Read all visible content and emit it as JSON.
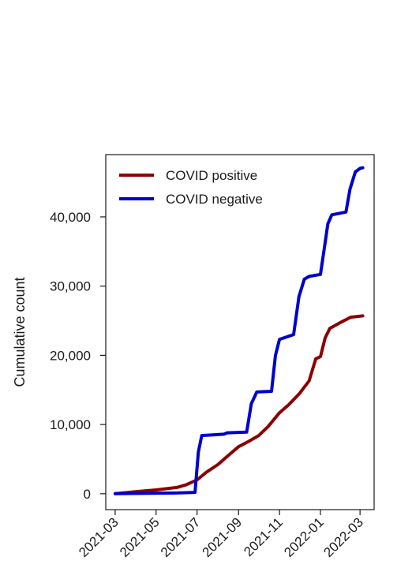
{
  "chart_data": {
    "type": "line",
    "title": "",
    "xlabel": "",
    "ylabel": "Cumulative count",
    "x_ticks": [
      "2021-03",
      "2021-05",
      "2021-07",
      "2021-09",
      "2021-11",
      "2022-01",
      "2022-03"
    ],
    "y_ticks": [
      0,
      10000,
      20000,
      30000,
      40000
    ],
    "y_tick_labels": [
      "0",
      "10,000",
      "20,000",
      "30,000",
      "40,000"
    ],
    "xlim": [
      "2021-02-15",
      "2022-03-22"
    ],
    "ylim": [
      -2300,
      49000
    ],
    "grid": false,
    "legend_position": "top-left",
    "series": [
      {
        "name": "COVID positive",
        "color": "#8b0000",
        "points": [
          [
            "2021-03-01",
            0
          ],
          [
            "2021-04-01",
            300
          ],
          [
            "2021-05-01",
            550
          ],
          [
            "2021-06-01",
            900
          ],
          [
            "2021-06-15",
            1300
          ],
          [
            "2021-07-01",
            2000
          ],
          [
            "2021-07-15",
            3100
          ],
          [
            "2021-08-01",
            4200
          ],
          [
            "2021-08-15",
            5400
          ],
          [
            "2021-09-01",
            6800
          ],
          [
            "2021-09-15",
            7500
          ],
          [
            "2021-10-01",
            8400
          ],
          [
            "2021-10-15",
            9700
          ],
          [
            "2021-11-01",
            11700
          ],
          [
            "2021-11-15",
            12900
          ],
          [
            "2021-12-01",
            14500
          ],
          [
            "2021-12-15",
            16300
          ],
          [
            "2021-12-25",
            19500
          ],
          [
            "2022-01-01",
            19800
          ],
          [
            "2022-01-08",
            22500
          ],
          [
            "2022-01-15",
            23900
          ],
          [
            "2022-02-01",
            24800
          ],
          [
            "2022-02-15",
            25500
          ],
          [
            "2022-03-05",
            25700
          ]
        ]
      },
      {
        "name": "COVID negative",
        "color": "#0000cd",
        "points": [
          [
            "2021-03-01",
            0
          ],
          [
            "2021-06-01",
            100
          ],
          [
            "2021-06-28",
            200
          ],
          [
            "2021-07-03",
            6000
          ],
          [
            "2021-07-08",
            8400
          ],
          [
            "2021-08-10",
            8600
          ],
          [
            "2021-08-15",
            8800
          ],
          [
            "2021-09-13",
            8900
          ],
          [
            "2021-09-20",
            13000
          ],
          [
            "2021-09-28",
            14700
          ],
          [
            "2021-10-20",
            14800
          ],
          [
            "2021-10-26",
            20000
          ],
          [
            "2021-11-01",
            22300
          ],
          [
            "2021-11-22",
            23000
          ],
          [
            "2021-11-30",
            28500
          ],
          [
            "2021-12-08",
            31000
          ],
          [
            "2021-12-15",
            31400
          ],
          [
            "2022-01-01",
            31700
          ],
          [
            "2022-01-06",
            35000
          ],
          [
            "2022-01-12",
            39000
          ],
          [
            "2022-01-18",
            40300
          ],
          [
            "2022-02-08",
            40700
          ],
          [
            "2022-02-14",
            44000
          ],
          [
            "2022-02-22",
            46500
          ],
          [
            "2022-03-01",
            47000
          ],
          [
            "2022-03-05",
            47100
          ]
        ]
      }
    ]
  }
}
